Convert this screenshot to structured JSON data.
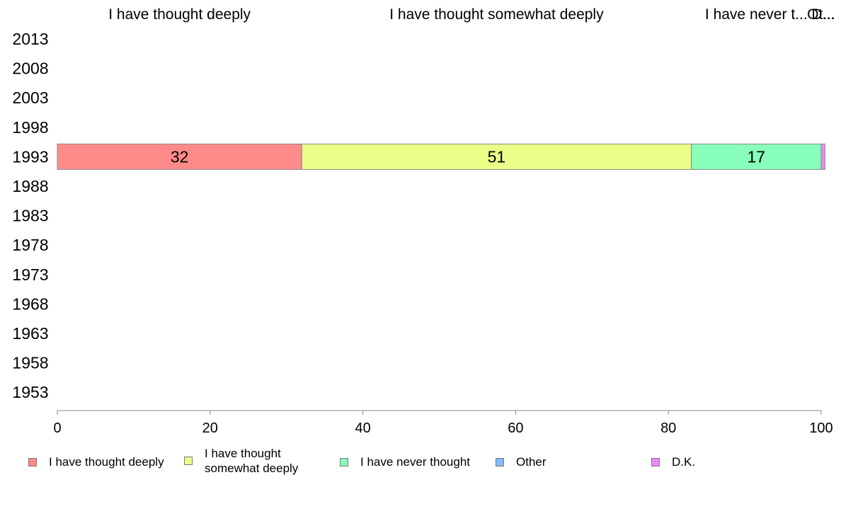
{
  "chart_data": {
    "type": "bar",
    "orientation": "horizontal",
    "stacked": true,
    "categories": [
      "2013",
      "2008",
      "2003",
      "1998",
      "1993",
      "1988",
      "1983",
      "1978",
      "1973",
      "1968",
      "1963",
      "1958",
      "1953"
    ],
    "column_headers": [
      "I have thought deeply",
      "I have thought somewhat deeply",
      "I have never t...",
      "Ot...",
      "D..."
    ],
    "series": [
      {
        "name": "I have thought deeply",
        "color": "#ff8a8a",
        "values": [
          null,
          null,
          null,
          null,
          32,
          null,
          null,
          null,
          null,
          null,
          null,
          null,
          null
        ]
      },
      {
        "name": "I have thought somewhat deeply",
        "color": "#ebff88",
        "values": [
          null,
          null,
          null,
          null,
          51,
          null,
          null,
          null,
          null,
          null,
          null,
          null,
          null
        ]
      },
      {
        "name": "I have never thought",
        "color": "#88ffbb",
        "values": [
          null,
          null,
          null,
          null,
          17,
          null,
          null,
          null,
          null,
          null,
          null,
          null,
          null
        ]
      },
      {
        "name": "Other",
        "color": "#88bbff",
        "values": [
          null,
          null,
          null,
          null,
          0,
          null,
          null,
          null,
          null,
          null,
          null,
          null,
          null
        ]
      },
      {
        "name": "D.K.",
        "color": "#ee88ff",
        "values": [
          null,
          null,
          null,
          null,
          0.5,
          null,
          null,
          null,
          null,
          null,
          null,
          null,
          null
        ]
      }
    ],
    "data_labels": [
      {
        "category": "1993",
        "series": "I have thought deeply",
        "text": "32"
      },
      {
        "category": "1993",
        "series": "I have thought somewhat deeply",
        "text": "51"
      },
      {
        "category": "1993",
        "series": "I have never thought",
        "text": "17"
      }
    ],
    "xlim": [
      0,
      100
    ],
    "xticks": [
      0,
      20,
      40,
      60,
      80,
      100
    ],
    "grid": false,
    "legend_position": "bottom"
  },
  "legend": [
    {
      "label": "I have thought deeply",
      "color": "#ff8a8a"
    },
    {
      "label": "I have thought\nsomewhat deeply",
      "color": "#ebff88"
    },
    {
      "label": "I have never thought",
      "color": "#88ffbb"
    },
    {
      "label": "Other",
      "color": "#88bbff"
    },
    {
      "label": "D.K.",
      "color": "#ee88ff"
    }
  ]
}
